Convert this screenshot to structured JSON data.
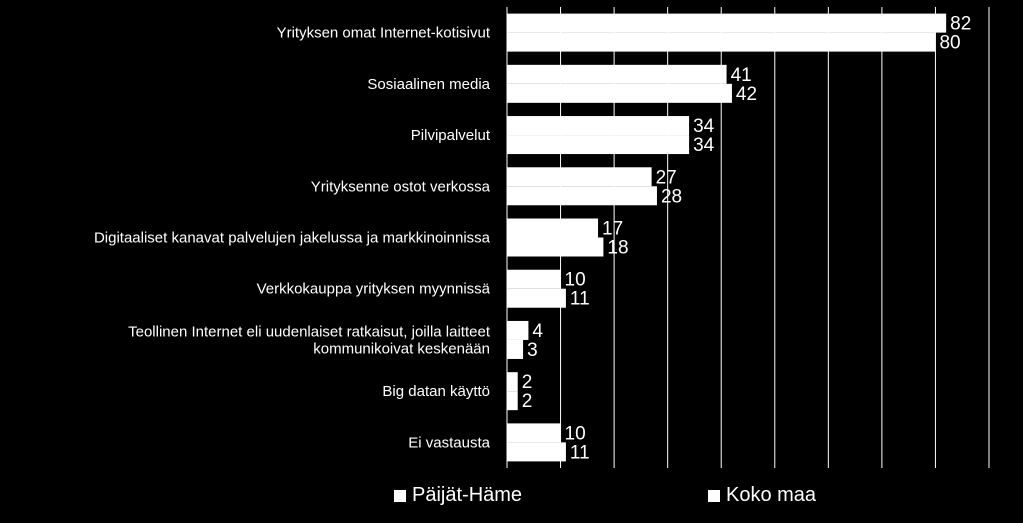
{
  "chart_data": {
    "type": "bar",
    "orientation": "horizontal",
    "categories": [
      "Yrityksen omat Internet-kotisivut",
      "Sosiaalinen media",
      "Pilvipalvelut",
      "Yrityksenne ostot verkossa",
      "Digitaaliset kanavat palvelujen jakelussa ja markkinoinnissa",
      "Verkkokauppa yrityksen myynnissä",
      "Teollinen Internet eli uudenlaiset ratkaisut, joilla laitteet kommunikoivat keskenään",
      "Big datan käyttö",
      "Ei vastausta"
    ],
    "series": [
      {
        "name": "Päijät-Häme",
        "values": [
          82,
          41,
          34,
          27,
          17,
          10,
          4,
          2,
          10
        ]
      },
      {
        "name": "Koko maa",
        "values": [
          80,
          42,
          34,
          28,
          18,
          11,
          3,
          2,
          11
        ]
      }
    ],
    "xlim": [
      0,
      90
    ],
    "grid": true,
    "legend_position": "bottom",
    "colors": {
      "background": "#000000",
      "bars": "#ffffff",
      "grid": "#ffffff",
      "text": "#ffffff"
    }
  },
  "legend": {
    "s1": "Päijät-Häme",
    "s2": "Koko maa"
  }
}
